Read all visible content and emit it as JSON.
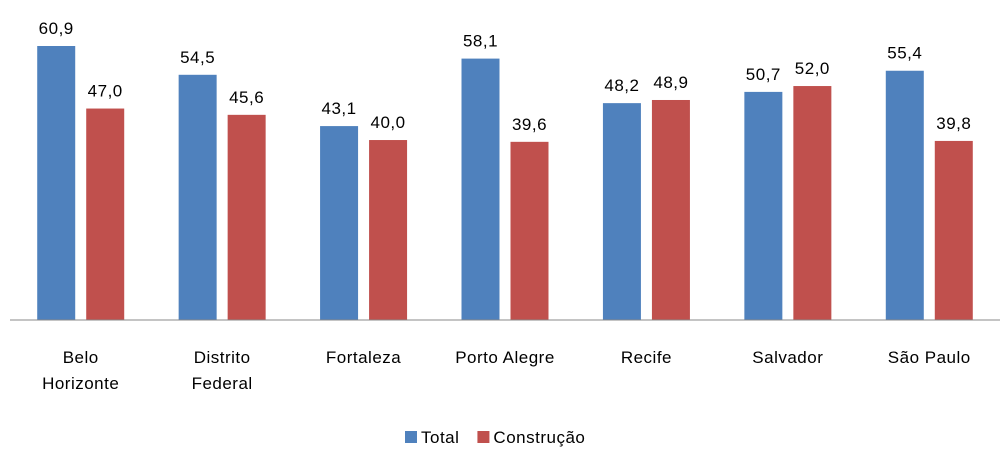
{
  "chart_data": {
    "type": "bar",
    "categories": [
      "Belo Horizonte",
      "Distrito Federal",
      "Fortaleza",
      "Porto Alegre",
      "Recife",
      "Salvador",
      "São Paulo"
    ],
    "series": [
      {
        "name": "Total",
        "color": "#4f81bd",
        "values": [
          60.9,
          54.5,
          43.1,
          58.1,
          48.2,
          50.7,
          55.4
        ],
        "value_labels": [
          "60,9",
          "54,5",
          "43,1",
          "58,1",
          "48,2",
          "50,7",
          "55,4"
        ]
      },
      {
        "name": "Construção",
        "color": "#c0504d",
        "values": [
          47.0,
          45.6,
          40.0,
          39.6,
          48.9,
          52.0,
          39.8
        ],
        "value_labels": [
          "47,0",
          "45,6",
          "40,0",
          "39,6",
          "48,9",
          "52,0",
          "39,8"
        ]
      }
    ],
    "legend": "bottom"
  }
}
